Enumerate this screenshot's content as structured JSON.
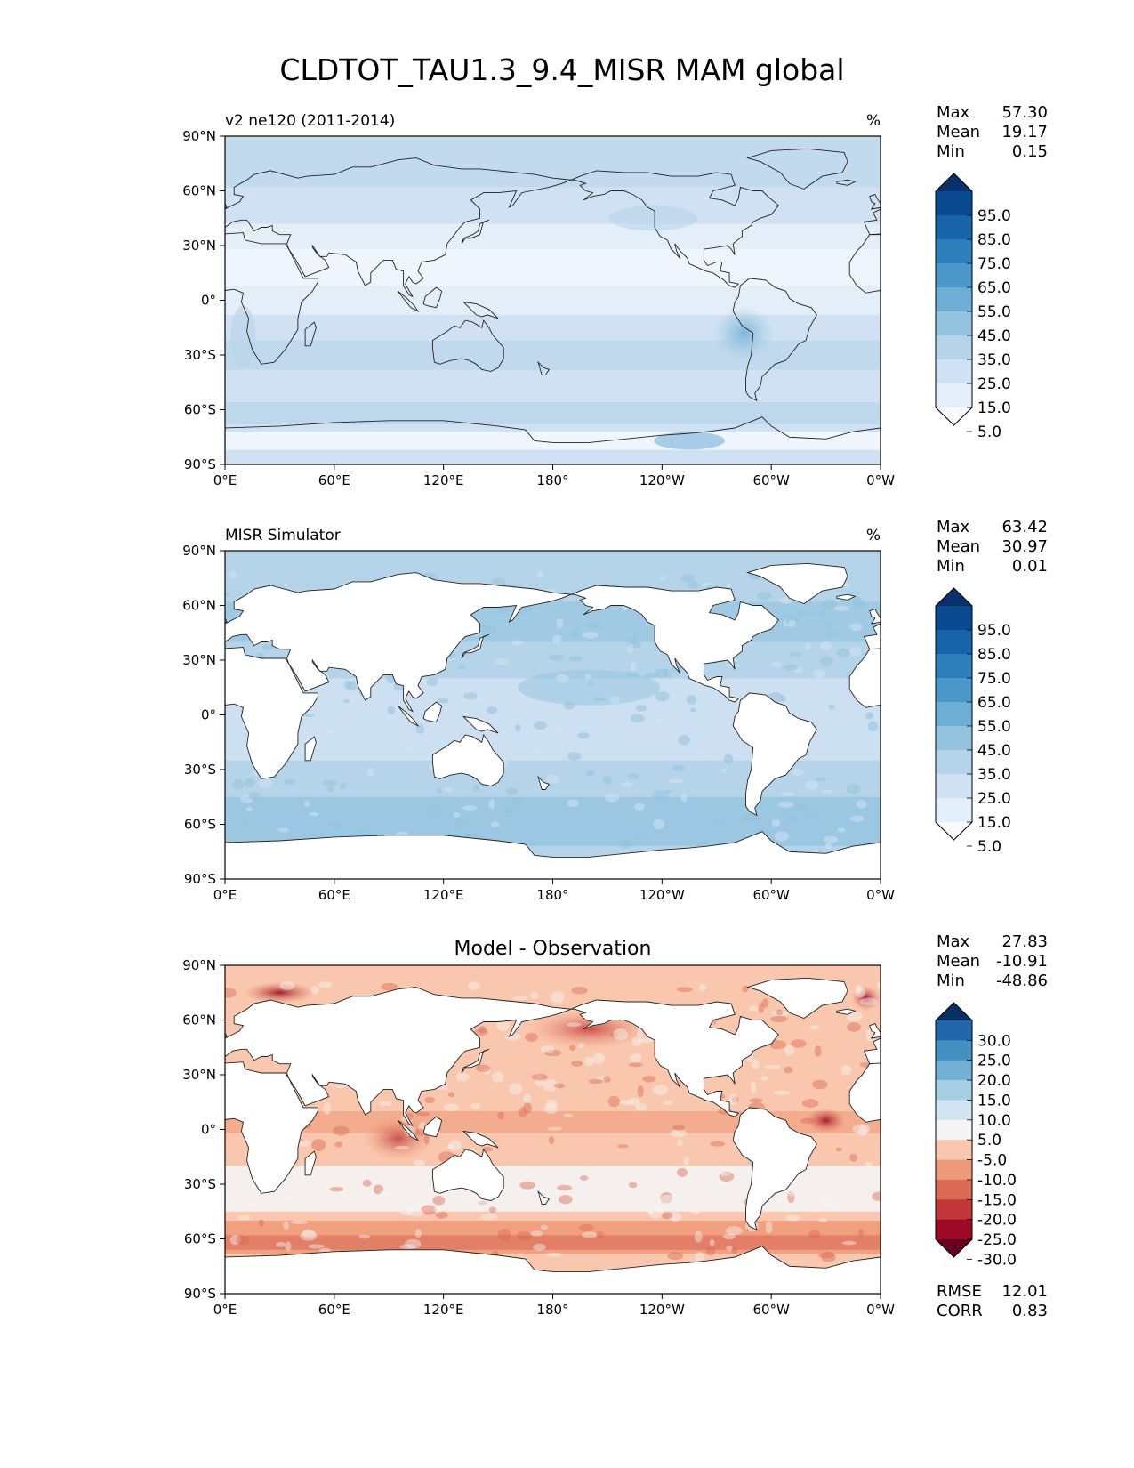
{
  "figure": {
    "title": "CLDTOT_TAU1.3_9.4_MISR MAM global",
    "x_tick_labels": [
      "0°E",
      "60°E",
      "120°E",
      "180°",
      "120°W",
      "60°W",
      "0°W"
    ],
    "y_tick_labels": [
      "90°N",
      "60°N",
      "30°N",
      "0°",
      "30°S",
      "60°S",
      "90°S"
    ],
    "stats_labels": {
      "max": "Max",
      "mean": "Mean",
      "min": "Min",
      "rmse": "RMSE",
      "corr": "CORR"
    }
  },
  "chart_data": [
    {
      "type": "heatmap",
      "panel": "model",
      "title_left": "v2 ne120 (2011-2014)",
      "title_center": "",
      "units": "%",
      "xlim": [
        0,
        360
      ],
      "ylim": [
        -90,
        90
      ],
      "x_ticks": [
        0,
        60,
        120,
        180,
        240,
        300,
        360
      ],
      "y_ticks": [
        90,
        60,
        30,
        0,
        -30,
        -60,
        -90
      ],
      "stats": {
        "max": "57.30",
        "mean": "19.17",
        "min": "0.15"
      },
      "colormap": "Blues",
      "colorbar_labels": [
        "95.0",
        "85.0",
        "75.0",
        "65.0",
        "55.0",
        "45.0",
        "35.0",
        "25.0",
        "15.0",
        "5.0"
      ],
      "colorbar_colors": [
        "#f7fbff",
        "#e3eef9",
        "#cfe1f2",
        "#b5d4e9",
        "#93c3df",
        "#6daed5",
        "#4b97c9",
        "#2f7ebc",
        "#1864aa",
        "#0a4a90",
        "#08306b"
      ],
      "land_masked": false
    },
    {
      "type": "heatmap",
      "panel": "observation",
      "title_left": "MISR Simulator",
      "title_center": "",
      "units": "%",
      "xlim": [
        0,
        360
      ],
      "ylim": [
        -90,
        90
      ],
      "x_ticks": [
        0,
        60,
        120,
        180,
        240,
        300,
        360
      ],
      "y_ticks": [
        90,
        60,
        30,
        0,
        -30,
        -60,
        -90
      ],
      "stats": {
        "max": "63.42",
        "mean": "30.97",
        "min": "0.01"
      },
      "colormap": "Blues",
      "colorbar_labels": [
        "95.0",
        "85.0",
        "75.0",
        "65.0",
        "55.0",
        "45.0",
        "35.0",
        "25.0",
        "15.0",
        "5.0"
      ],
      "colorbar_colors": [
        "#f7fbff",
        "#e3eef9",
        "#cfe1f2",
        "#b5d4e9",
        "#93c3df",
        "#6daed5",
        "#4b97c9",
        "#2f7ebc",
        "#1864aa",
        "#0a4a90",
        "#08306b"
      ],
      "land_masked": true
    },
    {
      "type": "heatmap",
      "panel": "difference",
      "title_left": "",
      "title_center": "Model - Observation",
      "units": "",
      "xlim": [
        0,
        360
      ],
      "ylim": [
        -90,
        90
      ],
      "x_ticks": [
        0,
        60,
        120,
        180,
        240,
        300,
        360
      ],
      "y_ticks": [
        90,
        60,
        30,
        0,
        -30,
        -60,
        -90
      ],
      "stats": {
        "max": "27.83",
        "mean": "-10.91",
        "min": "-48.86",
        "rmse": "12.01",
        "corr": "0.83"
      },
      "colormap": "RdBu_r",
      "colorbar_labels": [
        "30.0",
        "25.0",
        "20.0",
        "15.0",
        "10.0",
        "5.0",
        "-5.0",
        "-10.0",
        "-15.0",
        "-20.0",
        "-25.0",
        "-30.0"
      ],
      "colorbar_colors": [
        "#67001f",
        "#9e0a26",
        "#c2383a",
        "#db6b55",
        "#ee9a7a",
        "#f9c7ad",
        "#f4f4f4",
        "#d1e5f0",
        "#a6cfe4",
        "#72b1d4",
        "#4291c2",
        "#2166ac",
        "#053061"
      ],
      "land_masked": true
    }
  ]
}
